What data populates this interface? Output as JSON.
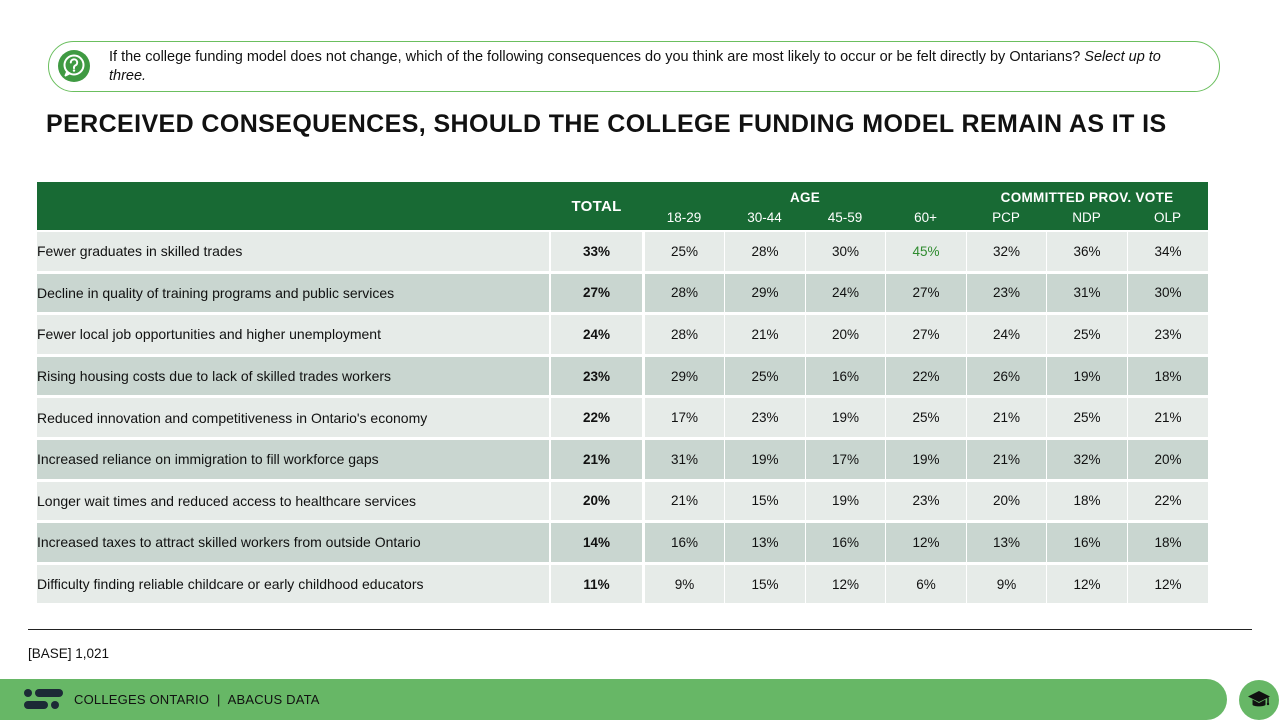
{
  "question": {
    "text": "If the college funding model does not change, which of the following consequences do you think are most likely to occur or be felt directly by Ontarians?",
    "instruction": "Select up to three."
  },
  "title": "PERCEIVED CONSEQUENCES, SHOULD THE COLLEGE FUNDING MODEL REMAIN AS IT IS",
  "table": {
    "total_header": "TOTAL",
    "groups": [
      {
        "label": "AGE",
        "columns": [
          "18-29",
          "30-44",
          "45-59",
          "60+"
        ]
      },
      {
        "label": "COMMITTED PROV. VOTE",
        "columns": [
          "PCP",
          "NDP",
          "OLP"
        ]
      }
    ],
    "rows": [
      {
        "label": "Fewer graduates in skilled trades",
        "total": "33%",
        "values": [
          "25%",
          "28%",
          "30%",
          "45%",
          "32%",
          "36%",
          "34%"
        ]
      },
      {
        "label": "Decline in quality of training programs and public services",
        "total": "27%",
        "values": [
          "28%",
          "29%",
          "24%",
          "27%",
          "23%",
          "31%",
          "30%"
        ]
      },
      {
        "label": "Fewer local job opportunities and higher unemployment",
        "total": "24%",
        "values": [
          "28%",
          "21%",
          "20%",
          "27%",
          "24%",
          "25%",
          "23%"
        ]
      },
      {
        "label": "Rising housing costs due to lack of skilled trades workers",
        "total": "23%",
        "values": [
          "29%",
          "25%",
          "16%",
          "22%",
          "26%",
          "19%",
          "18%"
        ]
      },
      {
        "label": "Reduced innovation and competitiveness in Ontario's economy",
        "total": "22%",
        "values": [
          "17%",
          "23%",
          "19%",
          "25%",
          "21%",
          "25%",
          "21%"
        ]
      },
      {
        "label": "Increased reliance on immigration to fill workforce gaps",
        "total": "21%",
        "values": [
          "31%",
          "19%",
          "17%",
          "19%",
          "21%",
          "32%",
          "20%"
        ]
      },
      {
        "label": "Longer wait times and reduced access to healthcare services",
        "total": "20%",
        "values": [
          "21%",
          "15%",
          "19%",
          "23%",
          "20%",
          "18%",
          "22%"
        ]
      },
      {
        "label": "Increased taxes to attract skilled workers from outside Ontario",
        "total": "14%",
        "values": [
          "16%",
          "13%",
          "16%",
          "12%",
          "13%",
          "16%",
          "18%"
        ]
      },
      {
        "label": "Difficulty finding reliable childcare or early childhood educators",
        "total": "11%",
        "values": [
          "9%",
          "15%",
          "12%",
          "6%",
          "9%",
          "12%",
          "12%"
        ]
      }
    ],
    "highlight": {
      "row": 0,
      "col": 3,
      "color": "#2e8b2e"
    }
  },
  "base": "[BASE] 1,021",
  "footer": {
    "org": "COLLEGES ONTARIO",
    "separator": "|",
    "partner": "ABACUS DATA"
  },
  "colors": {
    "header_green": "#186a34",
    "footer_green": "#67b766",
    "row_light": "#e6ebe8",
    "row_dark": "#c9d6d0"
  },
  "icons": {
    "question": "question-bubble-icon",
    "logo": "colleges-ontario-logo",
    "corner": "graduation-cap-icon"
  }
}
